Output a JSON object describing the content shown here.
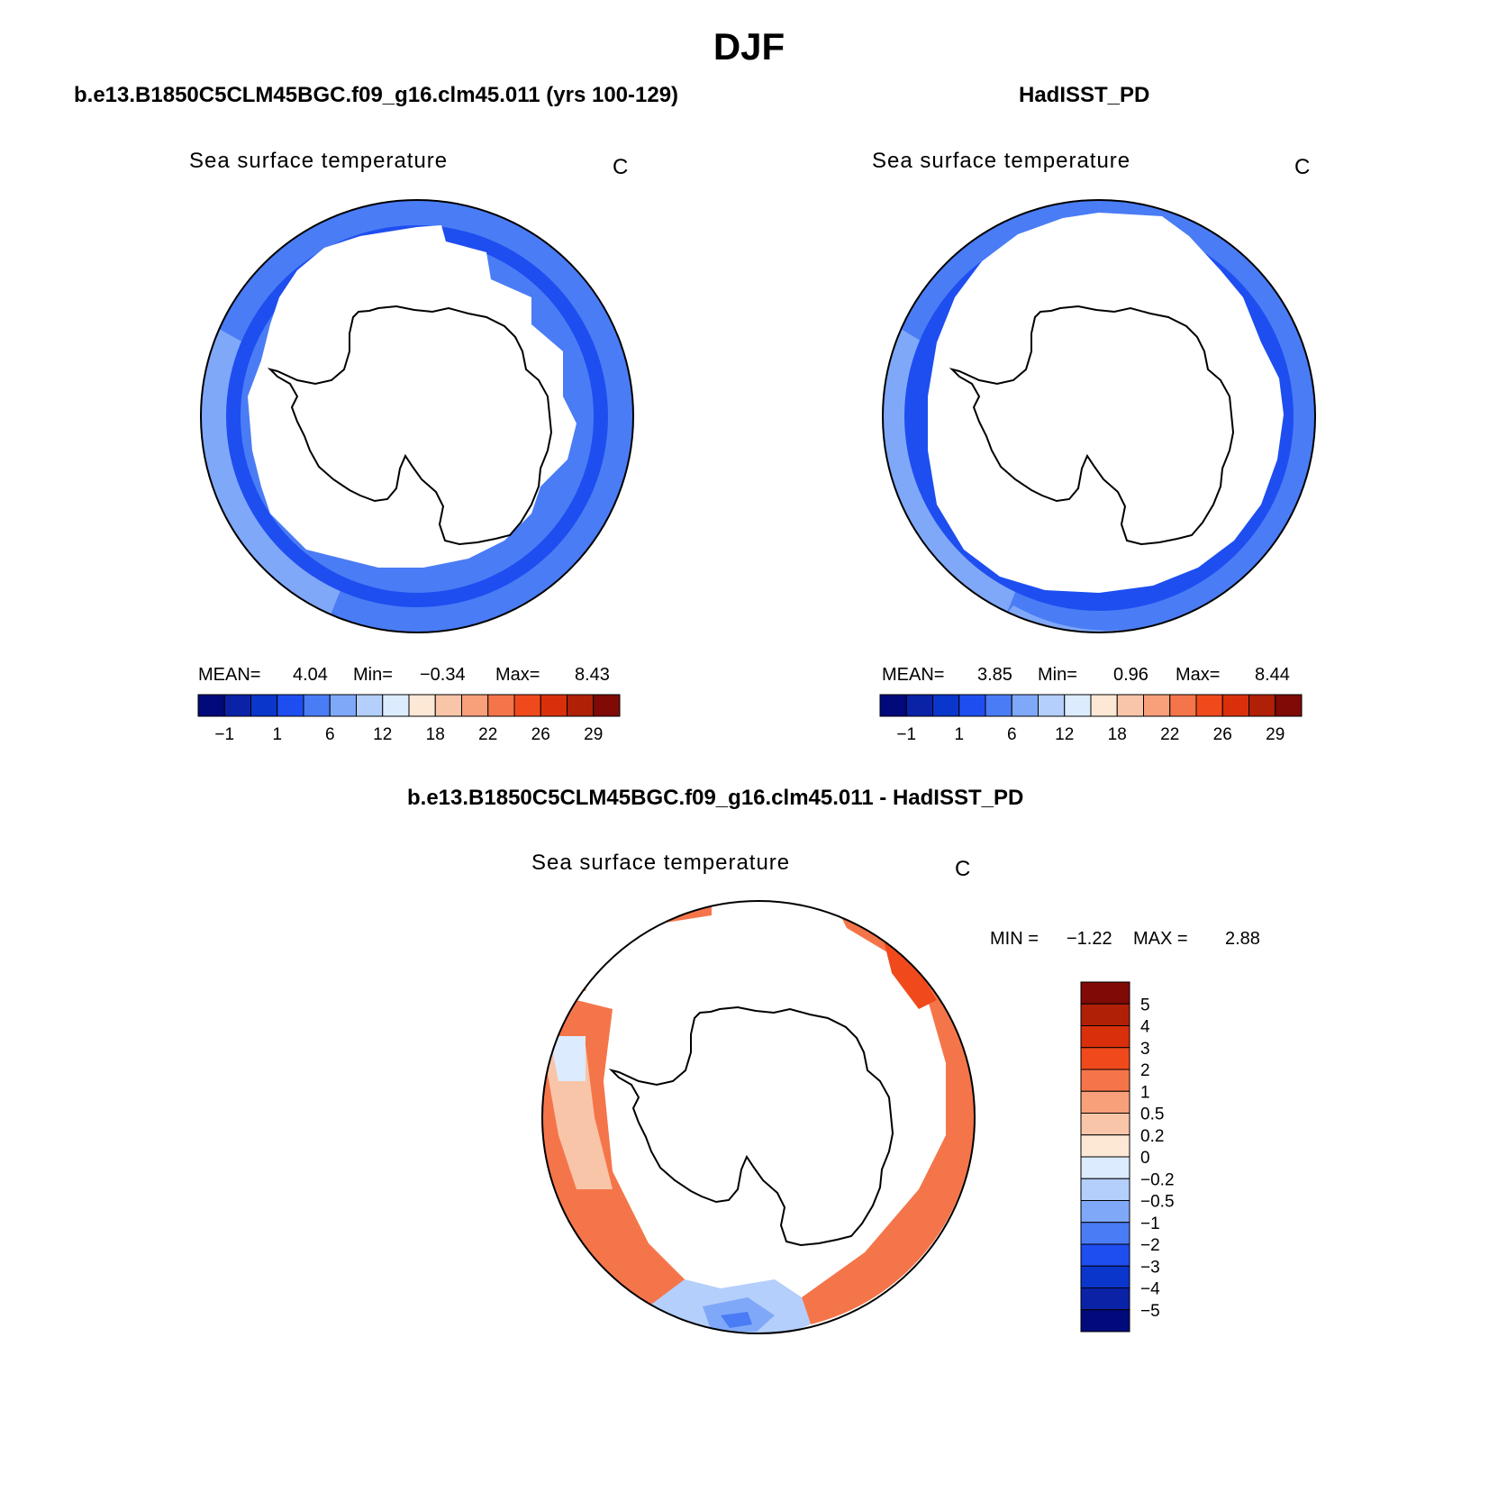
{
  "figure": {
    "title": "DJF"
  },
  "panels": [
    {
      "id": "model",
      "case_title": "b.e13.B1850C5CLM45BGC.f09_g16.clm45.011 (yrs 100-129)",
      "plot_title": "Sea surface temperature",
      "units": "C",
      "stats": {
        "mean_label": "MEAN=",
        "mean": "4.04",
        "min_label": "Min=",
        "min": "−0.34",
        "max_label": "Max=",
        "max": "8.43"
      }
    },
    {
      "id": "obs",
      "case_title": "HadISST_PD",
      "plot_title": "Sea surface temperature",
      "units": "C",
      "stats": {
        "mean_label": "MEAN=",
        "mean": "3.85",
        "min_label": "Min=",
        "min": "0.96",
        "max_label": "Max=",
        "max": "8.44"
      }
    },
    {
      "id": "diff",
      "case_title": "b.e13.B1850C5CLM45BGC.f09_g16.clm45.011 - HadISST_PD",
      "plot_title": "Sea surface temperature",
      "units": "C",
      "stats": {
        "min_label": "MIN =",
        "min": "−1.22",
        "max_label": "MAX =",
        "max": "2.88"
      }
    }
  ],
  "chart_data": [
    {
      "type": "heatmap",
      "title": "Sea surface temperature",
      "units": "C",
      "projection": "south polar stereographic",
      "colorbar": {
        "orientation": "horizontal",
        "tick_labels": [
          "−1",
          "1",
          "6",
          "12",
          "18",
          "22",
          "26",
          "29"
        ],
        "colors": [
          "#000a7a",
          "#0a22a6",
          "#0a36cc",
          "#1e4ef0",
          "#4a7cf5",
          "#80a8f8",
          "#b4cffb",
          "#dcebfd",
          "#fde8d6",
          "#f9c5a9",
          "#f7a079",
          "#f5754a",
          "#f04a1c",
          "#d9300b",
          "#b02006",
          "#7f0a06"
        ]
      },
      "stats": {
        "mean": 4.04,
        "min": -0.34,
        "max": 8.43
      }
    },
    {
      "type": "heatmap",
      "title": "Sea surface temperature",
      "units": "C",
      "projection": "south polar stereographic",
      "colorbar": {
        "orientation": "horizontal",
        "tick_labels": [
          "−1",
          "1",
          "6",
          "12",
          "18",
          "22",
          "26",
          "29"
        ],
        "colors": [
          "#000a7a",
          "#0a22a6",
          "#0a36cc",
          "#1e4ef0",
          "#4a7cf5",
          "#80a8f8",
          "#b4cffb",
          "#dcebfd",
          "#fde8d6",
          "#f9c5a9",
          "#f7a079",
          "#f5754a",
          "#f04a1c",
          "#d9300b",
          "#b02006",
          "#7f0a06"
        ]
      },
      "stats": {
        "mean": 3.85,
        "min": 0.96,
        "max": 8.44
      }
    },
    {
      "type": "heatmap",
      "title": "Sea surface temperature",
      "units": "C",
      "projection": "south polar stereographic",
      "colorbar": {
        "orientation": "vertical",
        "tick_labels": [
          "5",
          "4",
          "3",
          "2",
          "1",
          "0.5",
          "0.2",
          "0",
          "−0.2",
          "−0.5",
          "−1",
          "−2",
          "−3",
          "−4",
          "−5"
        ],
        "colors": [
          "#7f0a06",
          "#b02006",
          "#d9300b",
          "#f04a1c",
          "#f5754a",
          "#f7a079",
          "#f9c5a9",
          "#fde8d6",
          "#dcebfd",
          "#b4cffb",
          "#80a8f8",
          "#4a7cf5",
          "#1e4ef0",
          "#0a36cc",
          "#0a22a6",
          "#000a7a"
        ]
      },
      "stats": {
        "min": -1.22,
        "max": 2.88
      }
    }
  ]
}
